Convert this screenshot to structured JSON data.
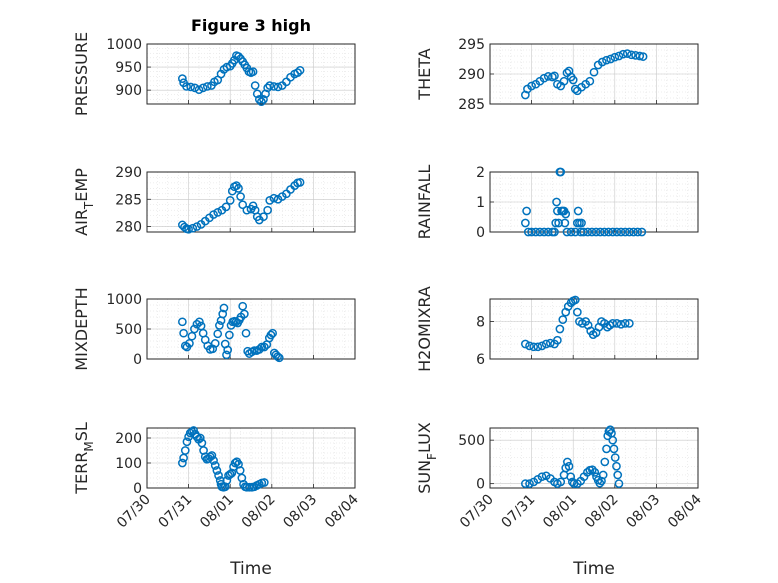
{
  "figure": {
    "title": "Figure 3 high",
    "marker_color": "#0072BD",
    "x_tick_labels": [
      "07/30",
      "07/31",
      "08/01",
      "08/02",
      "08/03",
      "08/04"
    ]
  },
  "chart_data": [
    {
      "type": "scatter",
      "ylabel": "PRESSURE",
      "ylabel_sub": "",
      "ylabel_tail": "",
      "ylim": [
        870,
        1000
      ],
      "yticks": [
        900,
        950,
        1000
      ],
      "xlim": [
        "07/30",
        "08/04"
      ],
      "grid": "on",
      "points": [
        [
          0.85,
          925
        ],
        [
          0.88,
          916
        ],
        [
          0.95,
          908
        ],
        [
          1.05,
          907
        ],
        [
          1.15,
          905
        ],
        [
          1.25,
          901
        ],
        [
          1.35,
          905
        ],
        [
          1.45,
          908
        ],
        [
          1.55,
          910
        ],
        [
          1.62,
          918
        ],
        [
          1.7,
          922
        ],
        [
          1.78,
          935
        ],
        [
          1.85,
          945
        ],
        [
          1.92,
          950
        ],
        [
          2.0,
          952
        ],
        [
          2.05,
          958
        ],
        [
          2.1,
          965
        ],
        [
          2.15,
          975
        ],
        [
          2.2,
          973
        ],
        [
          2.25,
          968
        ],
        [
          2.3,
          962
        ],
        [
          2.35,
          955
        ],
        [
          2.4,
          948
        ],
        [
          2.45,
          940
        ],
        [
          2.5,
          938
        ],
        [
          2.55,
          940
        ],
        [
          2.6,
          910
        ],
        [
          2.65,
          892
        ],
        [
          2.7,
          880
        ],
        [
          2.75,
          875
        ],
        [
          2.8,
          880
        ],
        [
          2.85,
          892
        ],
        [
          2.9,
          905
        ],
        [
          2.95,
          910
        ],
        [
          3.05,
          908
        ],
        [
          3.15,
          907
        ],
        [
          3.25,
          910
        ],
        [
          3.35,
          918
        ],
        [
          3.45,
          928
        ],
        [
          3.55,
          935
        ],
        [
          3.62,
          938
        ],
        [
          3.68,
          943
        ]
      ]
    },
    {
      "type": "scatter",
      "ylabel": "THETA",
      "ylabel_sub": "",
      "ylabel_tail": "",
      "ylim": [
        285,
        295
      ],
      "yticks": [
        285,
        290,
        295
      ],
      "xlim": [
        "07/30",
        "08/04"
      ],
      "grid": "on",
      "points": [
        [
          0.85,
          286.5
        ],
        [
          0.9,
          287.5
        ],
        [
          1.0,
          288.0
        ],
        [
          1.1,
          288.3
        ],
        [
          1.2,
          288.8
        ],
        [
          1.3,
          289.3
        ],
        [
          1.4,
          289.6
        ],
        [
          1.5,
          289.5
        ],
        [
          1.55,
          289.7
        ],
        [
          1.62,
          288.3
        ],
        [
          1.7,
          288.0
        ],
        [
          1.78,
          288.8
        ],
        [
          1.85,
          290.2
        ],
        [
          1.9,
          290.5
        ],
        [
          1.95,
          289.5
        ],
        [
          2.0,
          289.0
        ],
        [
          2.05,
          287.5
        ],
        [
          2.1,
          287.2
        ],
        [
          2.2,
          287.8
        ],
        [
          2.3,
          288.3
        ],
        [
          2.4,
          288.8
        ],
        [
          2.5,
          290.3
        ],
        [
          2.6,
          291.5
        ],
        [
          2.7,
          292.0
        ],
        [
          2.8,
          292.3
        ],
        [
          2.9,
          292.5
        ],
        [
          3.0,
          292.8
        ],
        [
          3.1,
          293.0
        ],
        [
          3.2,
          293.3
        ],
        [
          3.3,
          293.4
        ],
        [
          3.4,
          293.2
        ],
        [
          3.5,
          293.1
        ],
        [
          3.6,
          293.0
        ],
        [
          3.68,
          292.9
        ]
      ]
    },
    {
      "type": "scatter",
      "ylabel": "AIR",
      "ylabel_sub": "T",
      "ylabel_tail": "EMP",
      "ylim": [
        279,
        290
      ],
      "yticks": [
        280,
        285,
        290
      ],
      "xlim": [
        "07/30",
        "08/04"
      ],
      "grid": "on",
      "points": [
        [
          0.85,
          280.3
        ],
        [
          0.9,
          279.9
        ],
        [
          0.95,
          279.6
        ],
        [
          1.0,
          279.5
        ],
        [
          1.1,
          279.7
        ],
        [
          1.2,
          280.0
        ],
        [
          1.3,
          280.4
        ],
        [
          1.4,
          281.0
        ],
        [
          1.5,
          281.6
        ],
        [
          1.6,
          282.2
        ],
        [
          1.7,
          282.6
        ],
        [
          1.8,
          283.0
        ],
        [
          1.9,
          283.6
        ],
        [
          2.0,
          284.8
        ],
        [
          2.05,
          286.5
        ],
        [
          2.1,
          287.3
        ],
        [
          2.15,
          287.5
        ],
        [
          2.2,
          287.0
        ],
        [
          2.25,
          285.5
        ],
        [
          2.3,
          284.0
        ],
        [
          2.4,
          283.0
        ],
        [
          2.5,
          283.2
        ],
        [
          2.55,
          283.8
        ],
        [
          2.6,
          283.0
        ],
        [
          2.65,
          281.8
        ],
        [
          2.7,
          281.2
        ],
        [
          2.8,
          281.8
        ],
        [
          2.9,
          283.0
        ],
        [
          2.95,
          284.8
        ],
        [
          3.05,
          285.2
        ],
        [
          3.15,
          285.0
        ],
        [
          3.25,
          285.5
        ],
        [
          3.35,
          286.0
        ],
        [
          3.45,
          286.8
        ],
        [
          3.55,
          287.5
        ],
        [
          3.62,
          288.0
        ],
        [
          3.68,
          288.1
        ]
      ]
    },
    {
      "type": "scatter",
      "ylabel": "RAINFALL",
      "ylabel_sub": "",
      "ylabel_tail": "",
      "ylim": [
        0,
        2
      ],
      "yticks": [
        0,
        1,
        2
      ],
      "xlim": [
        "07/30",
        "08/04"
      ],
      "grid": "on",
      "points": [
        [
          0.85,
          0.3
        ],
        [
          0.88,
          0.7
        ],
        [
          0.92,
          0.0
        ],
        [
          1.0,
          0.0
        ],
        [
          1.1,
          0.0
        ],
        [
          1.2,
          0.0
        ],
        [
          1.3,
          0.0
        ],
        [
          1.4,
          0.0
        ],
        [
          1.5,
          0.0
        ],
        [
          1.55,
          0.0
        ],
        [
          1.58,
          0.3
        ],
        [
          1.6,
          1.0
        ],
        [
          1.62,
          0.7
        ],
        [
          1.65,
          0.3
        ],
        [
          1.68,
          2.0
        ],
        [
          1.7,
          2.0
        ],
        [
          1.72,
          0.7
        ],
        [
          1.75,
          0.7
        ],
        [
          1.78,
          0.7
        ],
        [
          1.8,
          0.3
        ],
        [
          1.82,
          0.6
        ],
        [
          1.85,
          0.0
        ],
        [
          1.95,
          0.0
        ],
        [
          2.05,
          0.0
        ],
        [
          2.1,
          0.3
        ],
        [
          2.12,
          0.7
        ],
        [
          2.15,
          0.3
        ],
        [
          2.18,
          0.0
        ],
        [
          2.2,
          0.3
        ],
        [
          2.25,
          0.0
        ],
        [
          2.35,
          0.0
        ],
        [
          2.45,
          0.0
        ],
        [
          2.55,
          0.0
        ],
        [
          2.65,
          0.0
        ],
        [
          2.75,
          0.0
        ],
        [
          2.85,
          0.0
        ],
        [
          2.95,
          0.0
        ],
        [
          3.05,
          0.0
        ],
        [
          3.15,
          0.0
        ],
        [
          3.25,
          0.0
        ],
        [
          3.35,
          0.0
        ],
        [
          3.45,
          0.0
        ],
        [
          3.55,
          0.0
        ],
        [
          3.65,
          0.0
        ]
      ]
    },
    {
      "type": "scatter",
      "ylabel": "MIXDEPTH",
      "ylabel_sub": "",
      "ylabel_tail": "",
      "ylim": [
        0,
        1000
      ],
      "yticks": [
        0,
        500,
        1000
      ],
      "xlim": [
        "07/30",
        "08/04"
      ],
      "grid": "on",
      "points": [
        [
          0.85,
          620
        ],
        [
          0.88,
          430
        ],
        [
          0.92,
          220
        ],
        [
          0.96,
          200
        ],
        [
          1.02,
          260
        ],
        [
          1.08,
          380
        ],
        [
          1.14,
          500
        ],
        [
          1.2,
          580
        ],
        [
          1.26,
          620
        ],
        [
          1.3,
          550
        ],
        [
          1.35,
          430
        ],
        [
          1.4,
          320
        ],
        [
          1.46,
          220
        ],
        [
          1.52,
          160
        ],
        [
          1.58,
          170
        ],
        [
          1.64,
          260
        ],
        [
          1.7,
          420
        ],
        [
          1.74,
          560
        ],
        [
          1.78,
          640
        ],
        [
          1.82,
          750
        ],
        [
          1.85,
          850
        ],
        [
          1.88,
          250
        ],
        [
          1.91,
          70
        ],
        [
          1.94,
          150
        ],
        [
          1.98,
          400
        ],
        [
          2.02,
          560
        ],
        [
          2.06,
          620
        ],
        [
          2.1,
          630
        ],
        [
          2.14,
          620
        ],
        [
          2.18,
          600
        ],
        [
          2.22,
          650
        ],
        [
          2.26,
          700
        ],
        [
          2.3,
          880
        ],
        [
          2.34,
          750
        ],
        [
          2.38,
          430
        ],
        [
          2.42,
          130
        ],
        [
          2.46,
          90
        ],
        [
          2.52,
          120
        ],
        [
          2.58,
          140
        ],
        [
          2.64,
          140
        ],
        [
          2.7,
          160
        ],
        [
          2.76,
          200
        ],
        [
          2.82,
          200
        ],
        [
          2.88,
          240
        ],
        [
          2.94,
          350
        ],
        [
          2.98,
          400
        ],
        [
          3.02,
          430
        ],
        [
          3.06,
          100
        ],
        [
          3.1,
          70
        ],
        [
          3.14,
          40
        ],
        [
          3.18,
          20
        ]
      ]
    },
    {
      "type": "scatter",
      "ylabel": "H2OMIXRA",
      "ylabel_sub": "",
      "ylabel_tail": "",
      "ylim": [
        6,
        9.2
      ],
      "yticks": [
        6,
        8
      ],
      "xlim": [
        "07/30",
        "08/04"
      ],
      "grid": "on",
      "points": [
        [
          0.85,
          6.8
        ],
        [
          0.95,
          6.7
        ],
        [
          1.05,
          6.65
        ],
        [
          1.15,
          6.65
        ],
        [
          1.25,
          6.7
        ],
        [
          1.35,
          6.8
        ],
        [
          1.45,
          6.85
        ],
        [
          1.55,
          6.8
        ],
        [
          1.62,
          7.0
        ],
        [
          1.68,
          7.6
        ],
        [
          1.75,
          8.1
        ],
        [
          1.82,
          8.5
        ],
        [
          1.88,
          8.8
        ],
        [
          1.95,
          9.0
        ],
        [
          2.0,
          9.1
        ],
        [
          2.05,
          9.15
        ],
        [
          2.1,
          8.5
        ],
        [
          2.15,
          8.0
        ],
        [
          2.22,
          7.9
        ],
        [
          2.3,
          8.0
        ],
        [
          2.36,
          7.8
        ],
        [
          2.42,
          7.5
        ],
        [
          2.48,
          7.3
        ],
        [
          2.55,
          7.4
        ],
        [
          2.62,
          7.7
        ],
        [
          2.68,
          8.0
        ],
        [
          2.75,
          7.9
        ],
        [
          2.82,
          7.7
        ],
        [
          2.88,
          7.8
        ],
        [
          2.95,
          7.9
        ],
        [
          3.05,
          7.9
        ],
        [
          3.15,
          7.85
        ],
        [
          3.25,
          7.9
        ],
        [
          3.35,
          7.9
        ]
      ]
    },
    {
      "type": "scatter",
      "ylabel": "TERR",
      "ylabel_sub": "M",
      "ylabel_tail": "SL",
      "ylim": [
        0,
        240
      ],
      "yticks": [
        0,
        100,
        200
      ],
      "xlim": [
        "07/30",
        "08/04"
      ],
      "grid": "on",
      "points": [
        [
          0.85,
          100
        ],
        [
          0.88,
          120
        ],
        [
          0.92,
          150
        ],
        [
          0.96,
          185
        ],
        [
          1.0,
          205
        ],
        [
          1.04,
          220
        ],
        [
          1.08,
          225
        ],
        [
          1.12,
          230
        ],
        [
          1.16,
          215
        ],
        [
          1.2,
          205
        ],
        [
          1.24,
          195
        ],
        [
          1.28,
          200
        ],
        [
          1.32,
          180
        ],
        [
          1.36,
          150
        ],
        [
          1.4,
          125
        ],
        [
          1.44,
          115
        ],
        [
          1.48,
          118
        ],
        [
          1.52,
          125
        ],
        [
          1.56,
          130
        ],
        [
          1.6,
          110
        ],
        [
          1.64,
          90
        ],
        [
          1.68,
          70
        ],
        [
          1.72,
          50
        ],
        [
          1.76,
          30
        ],
        [
          1.78,
          15
        ],
        [
          1.8,
          5
        ],
        [
          1.84,
          3
        ],
        [
          1.88,
          5
        ],
        [
          1.92,
          30
        ],
        [
          1.96,
          50
        ],
        [
          2.0,
          55
        ],
        [
          2.04,
          60
        ],
        [
          2.08,
          85
        ],
        [
          2.12,
          100
        ],
        [
          2.16,
          105
        ],
        [
          2.2,
          95
        ],
        [
          2.24,
          70
        ],
        [
          2.28,
          40
        ],
        [
          2.32,
          15
        ],
        [
          2.36,
          5
        ],
        [
          2.4,
          3
        ],
        [
          2.46,
          3
        ],
        [
          2.52,
          3
        ],
        [
          2.58,
          5
        ],
        [
          2.64,
          10
        ],
        [
          2.7,
          15
        ],
        [
          2.76,
          20
        ],
        [
          2.82,
          22
        ]
      ]
    },
    {
      "type": "scatter",
      "ylabel": "SUN",
      "ylabel_sub": "F",
      "ylabel_tail": "LUX",
      "ylim": [
        -50,
        640
      ],
      "yticks": [
        0,
        500
      ],
      "xlim": [
        "07/30",
        "08/04"
      ],
      "grid": "on",
      "points": [
        [
          0.85,
          0
        ],
        [
          0.95,
          0
        ],
        [
          1.05,
          20
        ],
        [
          1.15,
          50
        ],
        [
          1.25,
          80
        ],
        [
          1.35,
          90
        ],
        [
          1.45,
          60
        ],
        [
          1.55,
          20
        ],
        [
          1.62,
          0
        ],
        [
          1.7,
          20
        ],
        [
          1.78,
          100
        ],
        [
          1.82,
          180
        ],
        [
          1.86,
          250
        ],
        [
          1.9,
          200
        ],
        [
          1.94,
          80
        ],
        [
          1.98,
          20
        ],
        [
          2.02,
          0
        ],
        [
          2.1,
          0
        ],
        [
          2.18,
          30
        ],
        [
          2.26,
          80
        ],
        [
          2.34,
          130
        ],
        [
          2.4,
          155
        ],
        [
          2.46,
          160
        ],
        [
          2.52,
          130
        ],
        [
          2.56,
          80
        ],
        [
          2.6,
          40
        ],
        [
          2.64,
          5
        ],
        [
          2.68,
          30
        ],
        [
          2.72,
          100
        ],
        [
          2.76,
          250
        ],
        [
          2.8,
          400
        ],
        [
          2.83,
          550
        ],
        [
          2.86,
          600
        ],
        [
          2.89,
          620
        ],
        [
          2.92,
          580
        ],
        [
          2.95,
          500
        ],
        [
          2.98,
          400
        ],
        [
          3.01,
          300
        ],
        [
          3.04,
          200
        ],
        [
          3.07,
          100
        ],
        [
          3.1,
          0
        ]
      ]
    }
  ]
}
